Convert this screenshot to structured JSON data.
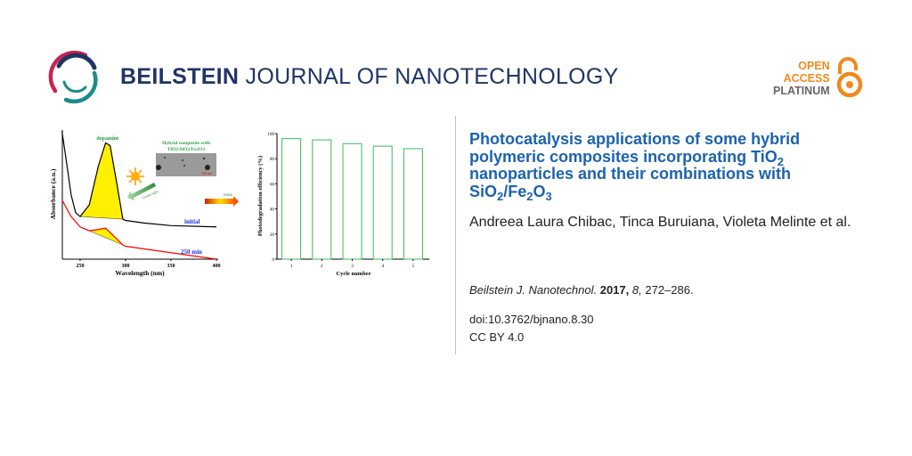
{
  "journal": {
    "name_bold": "BEILSTEIN",
    "name_rest": " JOURNAL OF NANOTECHNOLOGY",
    "brand_color": "#1f3466"
  },
  "badge": {
    "line1": "OPEN",
    "line2": "ACCESS",
    "line3": "PLATINUM",
    "color": "#f08a1d",
    "icon": "open-padlock-icon"
  },
  "article": {
    "title_parts": [
      "Photocatalysis applications of some hybrid polymeric composites incorporating TiO",
      "2",
      " nanoparticles and their combinations with SiO",
      "2",
      "/Fe",
      "2",
      "O",
      "3"
    ],
    "authors": "Andreea Laura Chibac, Tinca Buruiana, Violeta Melinte et al.",
    "journal_abbrev": "Beilstein J. Nanotechnol.",
    "year": "2017,",
    "volume": "8,",
    "pages": "272–286.",
    "doi": "doi:10.3762/bjnano.8.30",
    "license": "CC BY 4.0",
    "title_color": "#1c63ad"
  },
  "graphical_abstract": {
    "dopamine_label": "dopamine",
    "composite_label_1": "Hybrid composite with",
    "composite_label_2": "TiO2/SiO2/Fe2O3",
    "scale_bar": "100 nm",
    "light_label": "Visible light",
    "reuse_label": "reuse",
    "initial_label": "initial",
    "final_label": "250 min"
  },
  "chart_data": [
    {
      "type": "line",
      "xlabel": "Wavelength (nm)",
      "ylabel": "Absorbance (a.u.)",
      "xlim": [
        230,
        400
      ],
      "xticks": [
        250,
        300,
        350,
        400
      ],
      "series": [
        {
          "name": "initial",
          "color": "#000000",
          "highlight_range": [
            250,
            297
          ],
          "x": [
            230,
            235,
            240,
            245,
            250,
            260,
            270,
            278,
            283,
            290,
            297,
            300,
            320,
            350,
            400
          ],
          "y": [
            0.99,
            0.75,
            0.5,
            0.36,
            0.33,
            0.42,
            0.72,
            0.9,
            0.88,
            0.6,
            0.31,
            0.3,
            0.28,
            0.26,
            0.25
          ]
        },
        {
          "name": "250 min",
          "color": "#ff0000",
          "highlight_range": [
            250,
            297
          ],
          "x": [
            230,
            240,
            250,
            260,
            270,
            278,
            290,
            297,
            300,
            350,
            400
          ],
          "y": [
            0.46,
            0.33,
            0.25,
            0.22,
            0.23,
            0.24,
            0.16,
            0.11,
            0.1,
            0.05,
            0.0
          ]
        }
      ]
    },
    {
      "type": "bar",
      "xlabel": "Cycle number",
      "ylabel": "Photodegradation efficiency (%)",
      "categories": [
        "1",
        "2",
        "3",
        "4",
        "5"
      ],
      "values": [
        96,
        95,
        92,
        90,
        88
      ],
      "ylim": [
        0,
        100
      ],
      "yticks": [
        0,
        20,
        40,
        60,
        80,
        100
      ],
      "bar_color": "#3dbb5a"
    }
  ]
}
